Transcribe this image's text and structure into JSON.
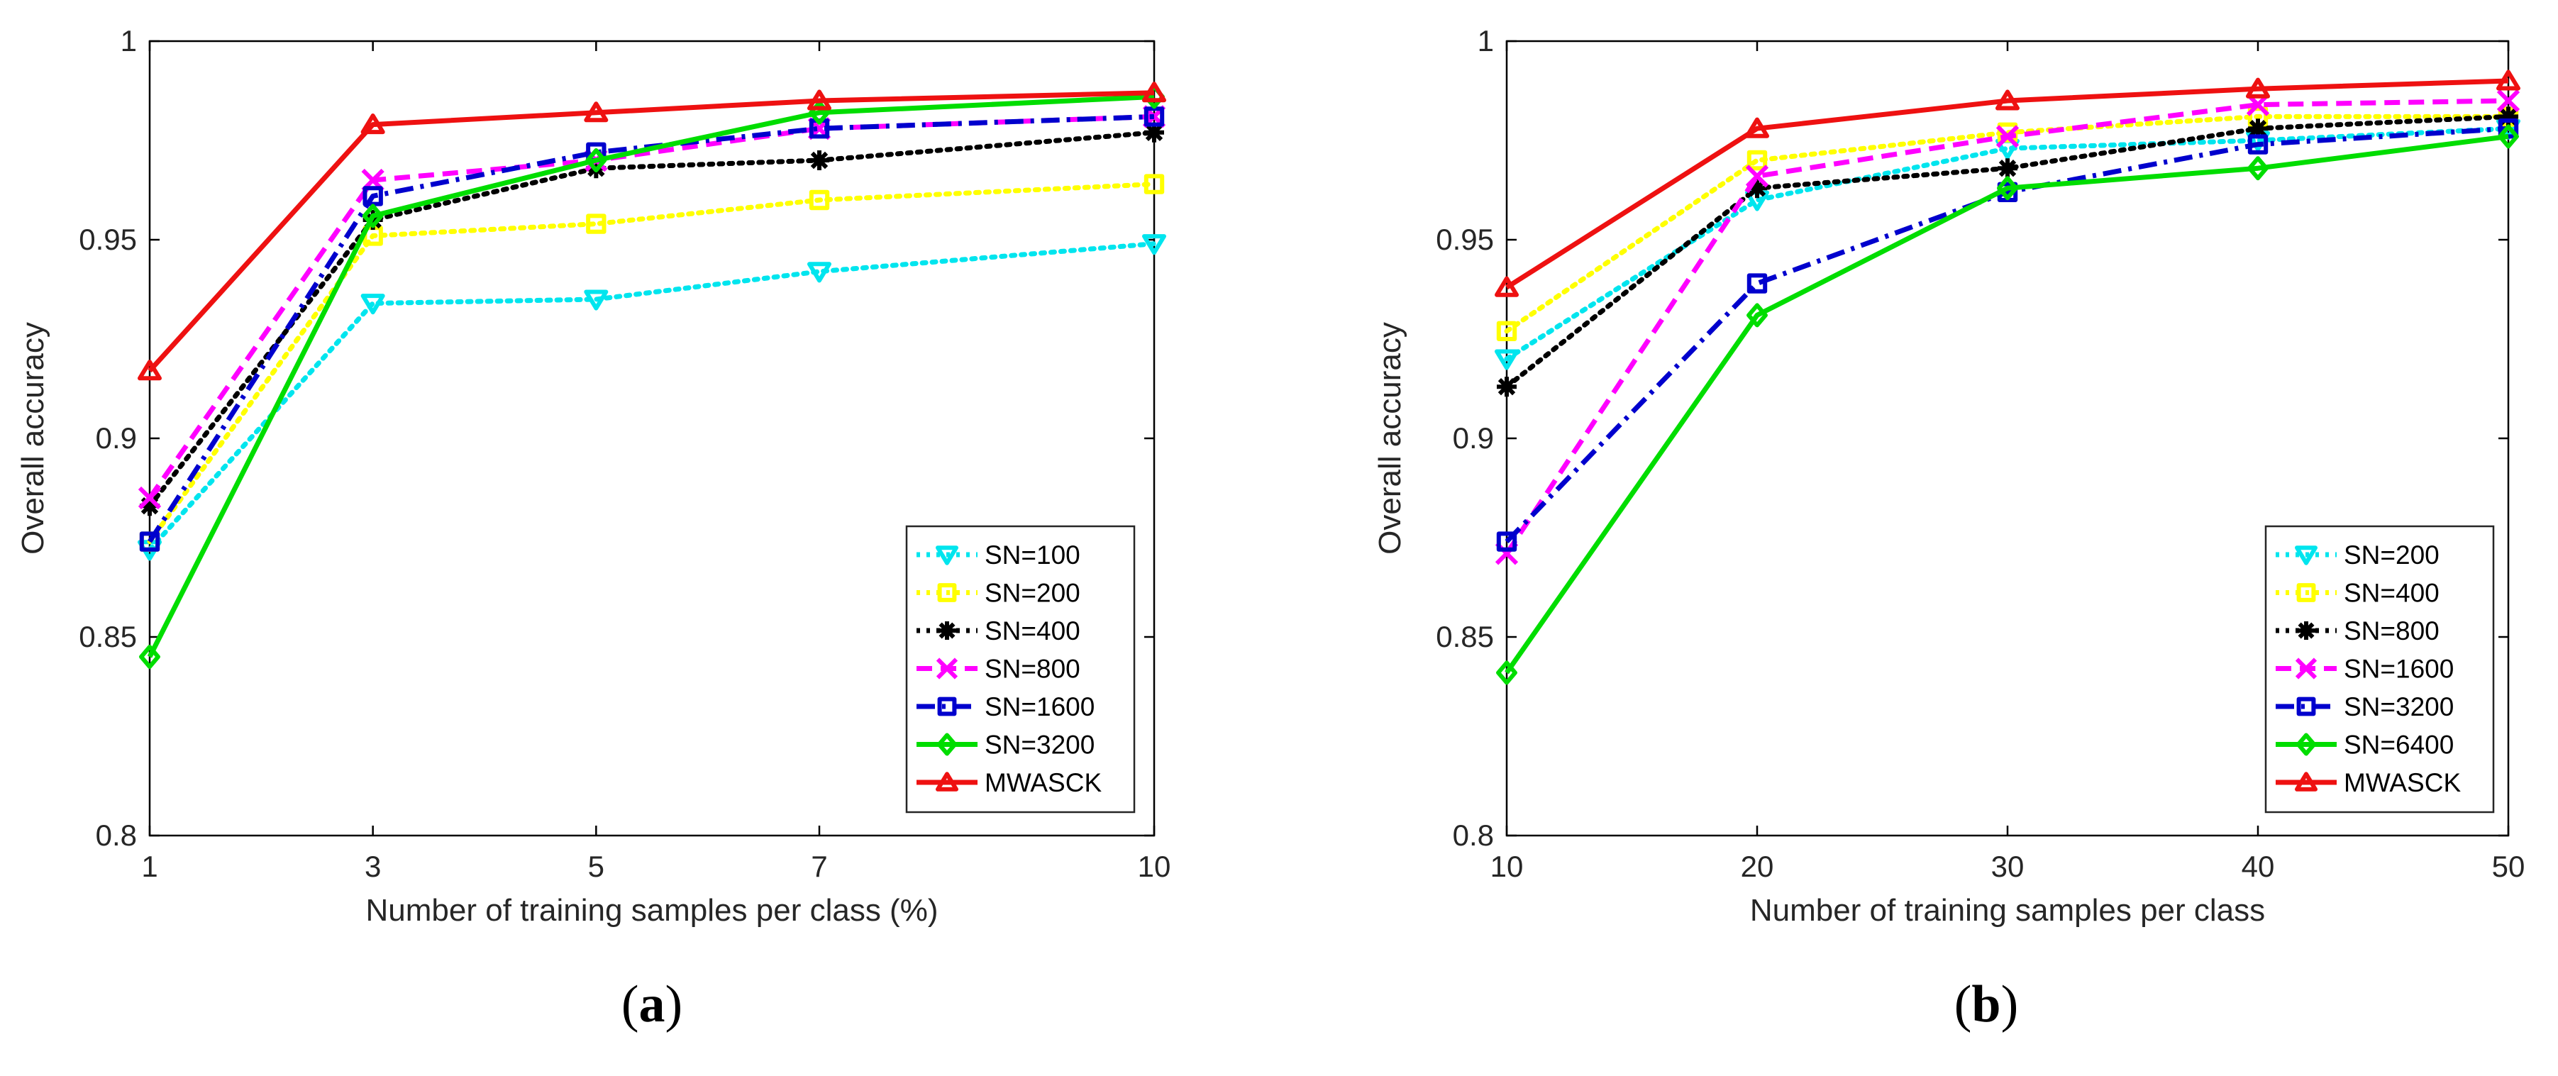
{
  "chart_data": [
    {
      "type": "line",
      "id": "a",
      "caption": "(a)",
      "caption_parts": {
        "open": "(",
        "letter": "a",
        "close": ")"
      },
      "xlabel": "Number of training samples per class (%)",
      "ylabel": "Overall accuracy",
      "x_ticks": [
        1,
        3,
        5,
        7,
        10
      ],
      "x_tick_labels": [
        "1",
        "3",
        "5",
        "7",
        "10"
      ],
      "y_ticks": [
        0.8,
        0.85,
        0.9,
        0.95,
        1.0
      ],
      "y_tick_labels": [
        "0.8",
        "0.85",
        "0.9",
        "0.95",
        "1"
      ],
      "ylim": [
        0.8,
        1.0
      ],
      "legend_position": "bottom-right",
      "series": [
        {
          "name": "SN=100",
          "color": "#00e5ee",
          "dash": "dotted",
          "marker": "triangle-down",
          "values": [
            0.872,
            0.934,
            0.935,
            0.942,
            0.949
          ]
        },
        {
          "name": "SN=200",
          "color": "#ffff00",
          "dash": "dotted",
          "marker": "square",
          "values": [
            0.874,
            0.951,
            0.954,
            0.96,
            0.964
          ]
        },
        {
          "name": "SN=400",
          "color": "#000000",
          "dash": "dotted",
          "marker": "asterisk",
          "values": [
            0.883,
            0.955,
            0.968,
            0.97,
            0.977
          ]
        },
        {
          "name": "SN=800",
          "color": "#ff00ff",
          "dash": "dashed",
          "marker": "x",
          "values": [
            0.885,
            0.965,
            0.97,
            0.978,
            0.981
          ]
        },
        {
          "name": "SN=1600",
          "color": "#0000cd",
          "dash": "dash-dot",
          "marker": "square",
          "values": [
            0.874,
            0.961,
            0.972,
            0.978,
            0.981
          ]
        },
        {
          "name": "SN=3200",
          "color": "#00dd00",
          "dash": "solid",
          "marker": "diamond",
          "values": [
            0.845,
            0.956,
            0.97,
            0.982,
            0.986
          ]
        },
        {
          "name": "MWASCK",
          "color": "#ee1111",
          "dash": "solid",
          "marker": "triangle-up",
          "values": [
            0.917,
            0.979,
            0.982,
            0.985,
            0.987
          ]
        }
      ]
    },
    {
      "type": "line",
      "id": "b",
      "caption": "(b)",
      "caption_parts": {
        "open": "(",
        "letter": "b",
        "close": ")"
      },
      "xlabel": "Number of training samples per class",
      "ylabel": "Overall accuracy",
      "x_ticks": [
        10,
        20,
        30,
        40,
        50
      ],
      "x_tick_labels": [
        "10",
        "20",
        "30",
        "40",
        "50"
      ],
      "y_ticks": [
        0.8,
        0.85,
        0.9,
        0.95,
        1.0
      ],
      "y_tick_labels": [
        "0.8",
        "0.85",
        "0.9",
        "0.95",
        "1"
      ],
      "ylim": [
        0.8,
        1.0
      ],
      "legend_position": "bottom-right",
      "series": [
        {
          "name": "SN=200",
          "color": "#00e5ee",
          "dash": "dotted",
          "marker": "triangle-down",
          "values": [
            0.92,
            0.96,
            0.973,
            0.975,
            0.978
          ]
        },
        {
          "name": "SN=400",
          "color": "#ffff00",
          "dash": "dotted",
          "marker": "square",
          "values": [
            0.927,
            0.97,
            0.977,
            0.981,
            0.981
          ]
        },
        {
          "name": "SN=800",
          "color": "#000000",
          "dash": "dotted",
          "marker": "asterisk",
          "values": [
            0.913,
            0.963,
            0.968,
            0.978,
            0.981
          ]
        },
        {
          "name": "SN=1600",
          "color": "#ff00ff",
          "dash": "dashed",
          "marker": "x",
          "values": [
            0.871,
            0.966,
            0.976,
            0.984,
            0.985
          ]
        },
        {
          "name": "SN=3200",
          "color": "#0000cd",
          "dash": "dash-dot",
          "marker": "square",
          "values": [
            0.874,
            0.939,
            0.962,
            0.974,
            0.978
          ]
        },
        {
          "name": "SN=6400",
          "color": "#00dd00",
          "dash": "solid",
          "marker": "diamond",
          "values": [
            0.841,
            0.931,
            0.963,
            0.968,
            0.976
          ]
        },
        {
          "name": "MWASCK",
          "color": "#ee1111",
          "dash": "solid",
          "marker": "triangle-up",
          "values": [
            0.938,
            0.978,
            0.985,
            0.988,
            0.99
          ]
        }
      ]
    }
  ]
}
